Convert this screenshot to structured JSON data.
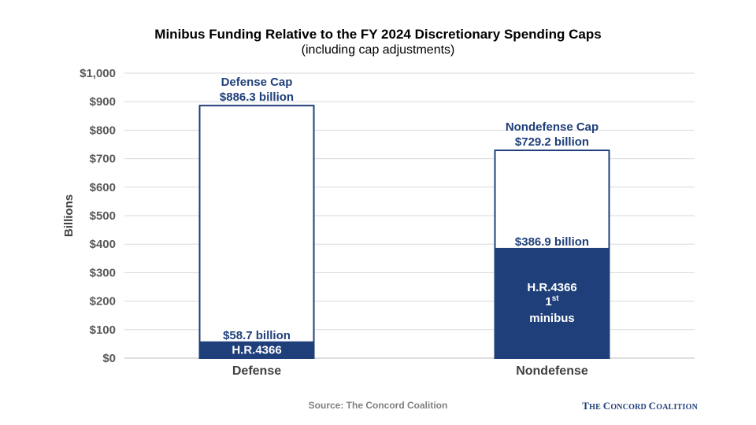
{
  "chart_data": {
    "type": "bar",
    "title": "Minibus Funding Relative to the FY 2024 Discretionary Spending Caps",
    "subtitle": "(including cap adjustments)",
    "ylabel": "Billions",
    "ylim": [
      0,
      1000
    ],
    "yticks": [
      0,
      100,
      200,
      300,
      400,
      500,
      600,
      700,
      800,
      900,
      1000
    ],
    "ytick_labels": [
      "$0",
      "$100",
      "$200",
      "$300",
      "$400",
      "$500",
      "$600",
      "$700",
      "$800",
      "$900",
      "$1,000"
    ],
    "categories": [
      "Defense",
      "Nondefense"
    ],
    "grid": true,
    "series": [
      {
        "name": "Cap",
        "values": [
          886.3,
          729.2
        ],
        "style": "outline"
      },
      {
        "name": "H.R.4366",
        "values": [
          58.7,
          386.9
        ],
        "style": "filled"
      }
    ],
    "colors": {
      "bar": "#1f3f7a",
      "grid": "#d9d9d9",
      "axis": "#bfbfbf"
    },
    "annotations": {
      "cap_labels": [
        [
          "Defense Cap",
          "$886.3 billion"
        ],
        [
          "Nondefense Cap",
          "$729.2 billion"
        ]
      ],
      "funding_labels": [
        "$58.7 billion",
        "$386.9 billion"
      ],
      "defense_inner": "H.R.4366",
      "nondefense_inner": {
        "line1": "H.R.4366",
        "line2_num": "1",
        "line2_sup": "st",
        "line3": "minibus"
      }
    }
  },
  "footer": {
    "source": "Source: The Concord Coalition",
    "logo_the": "T",
    "logo_he": "HE ",
    "logo_c1": "C",
    "logo_oncord": "ONCORD ",
    "logo_c2": "C",
    "logo_oalition": "OALITION"
  }
}
